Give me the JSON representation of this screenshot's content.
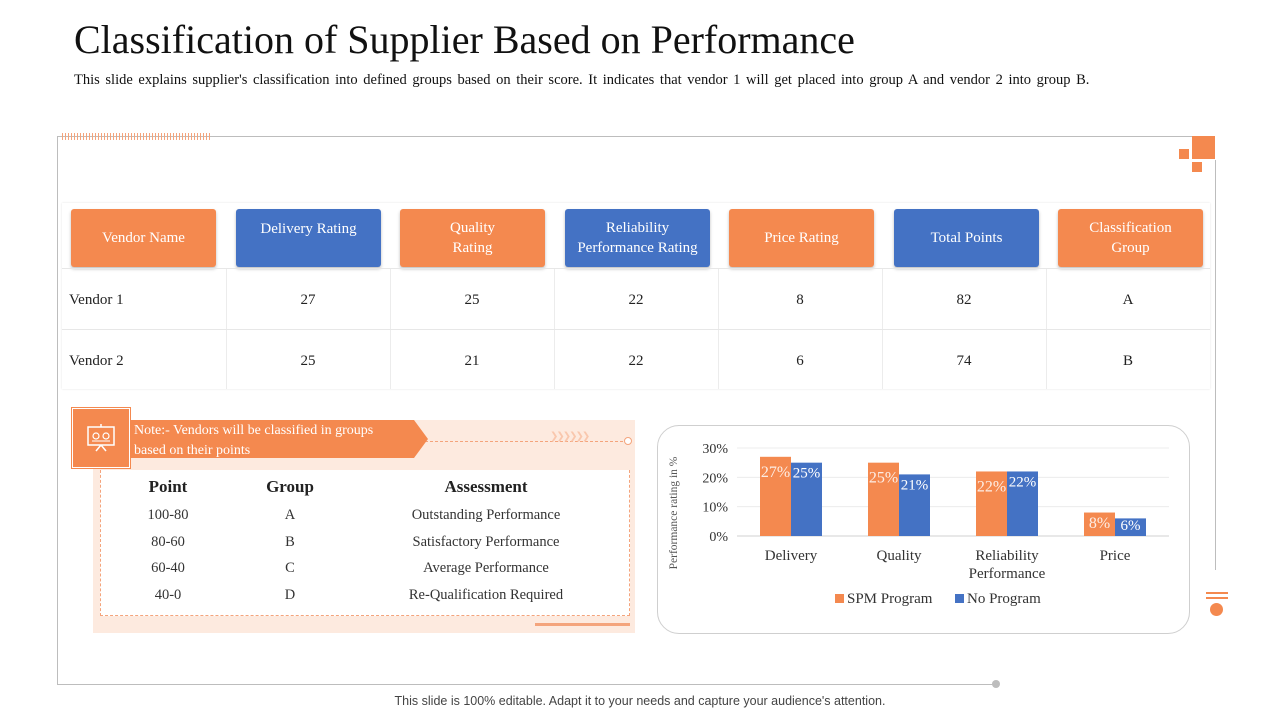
{
  "title": "Classification of Supplier Based on Performance",
  "subtitle": "This slide explains supplier's classification into defined groups based on their score. It indicates that vendor 1 will get placed into group A and vendor 2 into group B.",
  "colors": {
    "accent": "#f4894f",
    "blue": "#4472c4"
  },
  "table": {
    "headers": [
      "Vendor Name",
      "Delivery  Rating",
      "Quality\nRating",
      "Reliability\nPerformance  Rating",
      "Price Rating",
      "Total Points",
      "Classification\nGroup"
    ],
    "rows": [
      [
        "Vendor 1",
        "27",
        "25",
        "22",
        "8",
        "82",
        "A"
      ],
      [
        "Vendor 2",
        "25",
        "21",
        "22",
        "6",
        "74",
        "B"
      ]
    ]
  },
  "note": {
    "text": "Note:- Vendors will be classified in groups based on their points",
    "icon": "presentation-board-icon"
  },
  "assessment": {
    "headers": [
      "Point",
      "Group",
      "Assessment"
    ],
    "rows": [
      [
        "100-80",
        "A",
        "Outstanding  Performance"
      ],
      [
        "80-60",
        "B",
        "Satisfactory  Performance"
      ],
      [
        "60-40",
        "C",
        "Average Performance"
      ],
      [
        "40-0",
        "D",
        "Re-Qualification  Required"
      ]
    ]
  },
  "chart_data": {
    "type": "bar",
    "categories": [
      "Delivery",
      "Quality",
      "Reliability Performance",
      "Price"
    ],
    "series": [
      {
        "name": "SPM Program",
        "values": [
          27,
          25,
          22,
          8
        ],
        "color": "#f4894f",
        "labels": [
          "27%",
          "25%",
          "22%",
          "8%"
        ]
      },
      {
        "name": "No Program",
        "values": [
          25,
          21,
          22,
          6
        ],
        "color": "#4472c4",
        "labels": [
          "25%",
          "21%",
          "22%",
          "6%"
        ]
      }
    ],
    "title": "",
    "xlabel": "",
    "ylabel": "Performance rating in %",
    "ylim": [
      0,
      30
    ],
    "yticks": [
      "0%",
      "10%",
      "20%",
      "30%"
    ],
    "grid": true,
    "legend": "bottom"
  },
  "footer": "This slide is 100% editable. Adapt it to your needs and capture your audience's attention."
}
